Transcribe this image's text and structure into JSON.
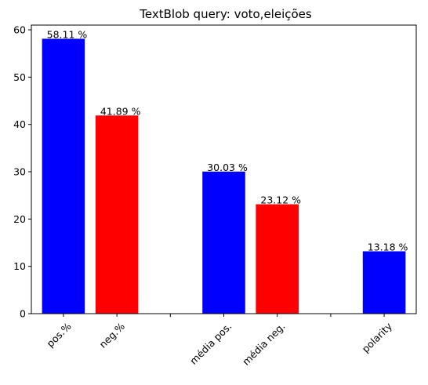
{
  "chart_data": {
    "type": "bar",
    "title": "TextBlob query: voto,eleições",
    "xlabel": "",
    "ylabel": "",
    "ylim": [
      0,
      61
    ],
    "yticks": [
      "0",
      "10",
      "20",
      "30",
      "40",
      "50",
      "60"
    ],
    "grid": false,
    "legend": "none",
    "value_suffix": " %",
    "categories": [
      "pos.%",
      "neg.%",
      "",
      "média pos.",
      "média neg.",
      "",
      "polarity"
    ],
    "bars": [
      {
        "label": "pos.%",
        "value": 58.11,
        "value_label": "58.11 %",
        "color": "#0000ff"
      },
      {
        "label": "neg.%",
        "value": 41.89,
        "value_label": "41.89 %",
        "color": "#ff0000"
      },
      {
        "label": "",
        "value": null,
        "value_label": "",
        "color": ""
      },
      {
        "label": "média pos.",
        "value": 30.03,
        "value_label": "30.03 %",
        "color": "#0000ff"
      },
      {
        "label": "média neg.",
        "value": 23.12,
        "value_label": "23.12 %",
        "color": "#ff0000"
      },
      {
        "label": "",
        "value": null,
        "value_label": "",
        "color": ""
      },
      {
        "label": "polarity",
        "value": 13.18,
        "value_label": "13.18 %",
        "color": "#0000ff"
      }
    ]
  }
}
